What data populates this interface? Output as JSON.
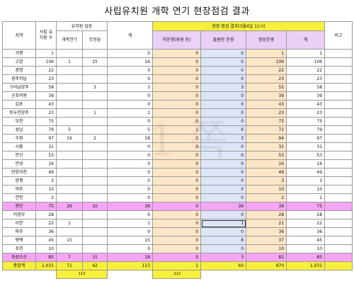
{
  "title": "사립유치원 개학 연기 현장점검 결과",
  "watermark": "1 쪽",
  "headers": {
    "region": "지역",
    "kinder_count": "사립 유치원 수",
    "kinder_stance": "유치원 입장",
    "postpone": "개학연기",
    "undecided": "무응답",
    "total": "계",
    "check_result": "현장 점검 결과(3월4일 11시)",
    "unconfirmed": "미운영(휴원 등)",
    "care_only": "돌봄만 운영",
    "normal": "정상운영",
    "subtotal": "계",
    "note": "비고"
  },
  "rows": [
    {
      "region": "가평",
      "count": "1",
      "postpone": "",
      "undecided": "",
      "total": "0",
      "unconf": "0",
      "care": "0",
      "normal": "1",
      "sub": "1",
      "hl": false
    },
    {
      "region": "고양",
      "count": "106",
      "postpone": "1",
      "undecided": "15",
      "total": "16",
      "unconf": "0",
      "care": "0",
      "normal": "106",
      "sub": "106",
      "hl": false
    },
    {
      "region": "광명",
      "count": "22",
      "postpone": "",
      "undecided": "",
      "total": "0",
      "unconf": "0",
      "care": "0",
      "normal": "22",
      "sub": "22",
      "hl": false
    },
    {
      "region": "광주하남",
      "count": "23",
      "postpone": "",
      "undecided": "",
      "total": "0",
      "unconf": "0",
      "care": "0",
      "normal": "23",
      "sub": "23",
      "hl": false
    },
    {
      "region": "구리남양주",
      "count": "58",
      "postpone": "",
      "undecided": "3",
      "total": "3",
      "unconf": "0",
      "care": "3",
      "normal": "55",
      "sub": "58",
      "hl": false
    },
    {
      "region": "군포의왕",
      "count": "39",
      "postpone": "",
      "undecided": "",
      "total": "0",
      "unconf": "0",
      "care": "0",
      "normal": "39",
      "sub": "39",
      "hl": false
    },
    {
      "region": "김포",
      "count": "43",
      "postpone": "",
      "undecided": "",
      "total": "0",
      "unconf": "0",
      "care": "0",
      "normal": "43",
      "sub": "43",
      "hl": false
    },
    {
      "region": "동두천양주",
      "count": "23",
      "postpone": "",
      "undecided": "1",
      "total": "1",
      "unconf": "0",
      "care": "0",
      "normal": "23",
      "sub": "23",
      "hl": false
    },
    {
      "region": "부천",
      "count": "75",
      "postpone": "",
      "undecided": "",
      "total": "0",
      "unconf": "0",
      "care": "0",
      "normal": "75",
      "sub": "75",
      "hl": false
    },
    {
      "region": "성남",
      "count": "79",
      "postpone": "5",
      "undecided": "",
      "total": "5",
      "unconf": "1",
      "care": "6",
      "normal": "72",
      "sub": "79",
      "hl": false
    },
    {
      "region": "수원",
      "count": "97",
      "postpone": "16",
      "undecided": "2",
      "total": "18",
      "unconf": "0",
      "care": "3",
      "normal": "94",
      "sub": "97",
      "hl": false
    },
    {
      "region": "시흥",
      "count": "31",
      "postpone": "",
      "undecided": "",
      "total": "0",
      "unconf": "0",
      "care": "0",
      "normal": "31",
      "sub": "31",
      "hl": false
    },
    {
      "region": "안산",
      "count": "53",
      "postpone": "",
      "undecided": "",
      "total": "0",
      "unconf": "0",
      "care": "0",
      "normal": "53",
      "sub": "53",
      "hl": false
    },
    {
      "region": "안성",
      "count": "16",
      "postpone": "",
      "undecided": "",
      "total": "0",
      "unconf": "0",
      "care": "0",
      "normal": "16",
      "sub": "16",
      "hl": false
    },
    {
      "region": "안양과천",
      "count": "49",
      "postpone": "",
      "undecided": "",
      "total": "0",
      "unconf": "0",
      "care": "0",
      "normal": "49",
      "sub": "49",
      "hl": false
    },
    {
      "region": "양평",
      "count": "3",
      "postpone": "",
      "undecided": "",
      "total": "0",
      "unconf": "0",
      "care": "0",
      "normal": "3",
      "sub": "3",
      "hl": false
    },
    {
      "region": "여주",
      "count": "10",
      "postpone": "",
      "undecided": "",
      "total": "0",
      "unconf": "0",
      "care": "0",
      "normal": "10",
      "sub": "10",
      "hl": false
    },
    {
      "region": "연천",
      "count": "2",
      "postpone": "",
      "undecided": "",
      "total": "0",
      "unconf": "0",
      "care": "0",
      "normal": "2",
      "sub": "2",
      "hl": false
    },
    {
      "region": "용인",
      "count": "75",
      "postpone": "26",
      "undecided": "10",
      "total": "36",
      "unconf": "0",
      "care": "36",
      "normal": "39",
      "sub": "75",
      "hl": true
    },
    {
      "region": "의정부",
      "count": "28",
      "postpone": "",
      "undecided": "",
      "total": "0",
      "unconf": "0",
      "care": "0",
      "normal": "28",
      "sub": "28",
      "hl": false
    },
    {
      "region": "이천",
      "count": "22",
      "postpone": "1",
      "undecided": "",
      "total": "1",
      "unconf": "0",
      "care": "1",
      "normal": "21",
      "sub": "22",
      "hl": false,
      "box": true
    },
    {
      "region": "파주",
      "count": "36",
      "postpone": "",
      "undecided": "",
      "total": "0",
      "unconf": "0",
      "care": "0",
      "normal": "36",
      "sub": "36",
      "hl": false
    },
    {
      "region": "평택",
      "count": "45",
      "postpone": "15",
      "undecided": "",
      "total": "15",
      "unconf": "0",
      "care": "8",
      "normal": "37",
      "sub": "45",
      "hl": false
    },
    {
      "region": "포천",
      "count": "10",
      "postpone": "",
      "undecided": "",
      "total": "0",
      "unconf": "0",
      "care": "0",
      "normal": "10",
      "sub": "10",
      "hl": false
    },
    {
      "region": "화성오산",
      "count": "85",
      "postpone": "7",
      "undecided": "11",
      "total": "18",
      "unconf": "0",
      "care": "3",
      "normal": "82",
      "sub": "85",
      "hl": true
    }
  ],
  "total_row": {
    "region": "총합계",
    "count": "1,031",
    "postpone": "71",
    "undecided": "42",
    "total": "113",
    "unconf": "1",
    "care": "60",
    "normal": "970",
    "sub": "1,031"
  },
  "footer": {
    "stance_sum": "113",
    "unconf_sum": "-112"
  }
}
